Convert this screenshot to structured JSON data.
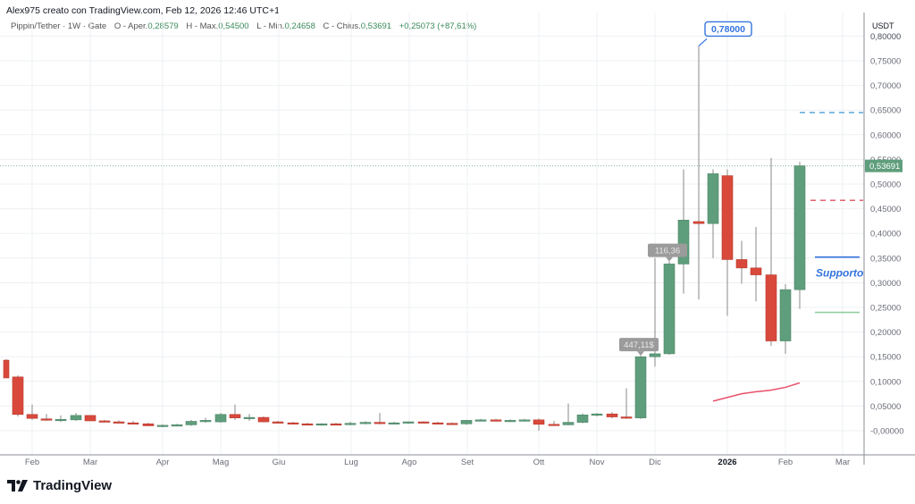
{
  "header": {
    "credit": "Alex975 creato con TradingView.com, Feb 12, 2026 12:46 UTC+1",
    "symbol": "Pippin/Tether · 1W · Gate",
    "open_label": "O - Aper.",
    "open": "0,28579",
    "high_label": "H - Max.",
    "high": "0,54500",
    "low_label": "L - Min.",
    "low": "0,24658",
    "close_label": "C - Chius.",
    "close": "0,53691",
    "change": "+0,25073 (+87,61%)"
  },
  "footer": {
    "brand": "TradingView"
  },
  "colors": {
    "up": "#5f9e7c",
    "down": "#d9493b",
    "wick": "#888888",
    "grid": "#eef0f3",
    "annotation_blue": "#3474dd",
    "resistance_dashed_blue": "#4a9fd8",
    "resistance_dashed_red": "#e05060",
    "support_green": "#8fce9f",
    "ma_line": "#e8506a"
  },
  "chart_data": {
    "type": "candlestick",
    "title": "Pippin/Tether · 1W · Gate",
    "ylabel": "USDT",
    "ylim": [
      -0.045,
      0.81
    ],
    "y_ticks": [
      "0,80000",
      "0,75000",
      "0,70000",
      "0,65000",
      "0,60000",
      "0,55000",
      "0,50000",
      "0,45000",
      "0,40000",
      "0,35000",
      "0,30000",
      "0,25000",
      "0,20000",
      "0,15000",
      "0,10000",
      "0,05000",
      "-0,00000"
    ],
    "y_tick_values": [
      0.8,
      0.75,
      0.7,
      0.65,
      0.6,
      0.55,
      0.5,
      0.45,
      0.4,
      0.35,
      0.3,
      0.25,
      0.2,
      0.15,
      0.1,
      0.05,
      0.0
    ],
    "x_ticks": [
      {
        "label": "Feb",
        "x": 36,
        "bold": false
      },
      {
        "label": "Mar",
        "x": 101,
        "bold": false
      },
      {
        "label": "Apr",
        "x": 182,
        "bold": false
      },
      {
        "label": "Mag",
        "x": 247,
        "bold": false
      },
      {
        "label": "Giu",
        "x": 312,
        "bold": false
      },
      {
        "label": "Lug",
        "x": 393,
        "bold": false
      },
      {
        "label": "Ago",
        "x": 458,
        "bold": false
      },
      {
        "label": "Set",
        "x": 523,
        "bold": false
      },
      {
        "label": "Ott",
        "x": 603,
        "bold": false
      },
      {
        "label": "Nov",
        "x": 668,
        "bold": false
      },
      {
        "label": "Dic",
        "x": 733,
        "bold": false
      },
      {
        "label": "2026",
        "x": 814,
        "bold": true
      },
      {
        "label": "Feb",
        "x": 879,
        "bold": false
      },
      {
        "label": "Mar",
        "x": 943,
        "bold": false
      }
    ],
    "candles": [
      {
        "x": 7,
        "o": 0.143,
        "h": 0.145,
        "l": 0.107,
        "c": 0.107,
        "partial": true
      },
      {
        "x": 20,
        "o": 0.109,
        "h": 0.112,
        "l": 0.029,
        "c": 0.033
      },
      {
        "x": 36,
        "o": 0.033,
        "h": 0.053,
        "l": 0.022,
        "c": 0.025
      },
      {
        "x": 52,
        "o": 0.024,
        "h": 0.034,
        "l": 0.02,
        "c": 0.022
      },
      {
        "x": 68,
        "o": 0.022,
        "h": 0.031,
        "l": 0.018,
        "c": 0.023
      },
      {
        "x": 85,
        "o": 0.022,
        "h": 0.036,
        "l": 0.02,
        "c": 0.031
      },
      {
        "x": 101,
        "o": 0.031,
        "h": 0.031,
        "l": 0.019,
        "c": 0.02
      },
      {
        "x": 117,
        "o": 0.02,
        "h": 0.022,
        "l": 0.017,
        "c": 0.018
      },
      {
        "x": 133,
        "o": 0.018,
        "h": 0.021,
        "l": 0.015,
        "c": 0.016
      },
      {
        "x": 149,
        "o": 0.016,
        "h": 0.02,
        "l": 0.013,
        "c": 0.014
      },
      {
        "x": 166,
        "o": 0.014,
        "h": 0.016,
        "l": 0.009,
        "c": 0.01
      },
      {
        "x": 182,
        "o": 0.009,
        "h": 0.013,
        "l": 0.007,
        "c": 0.011
      },
      {
        "x": 198,
        "o": 0.011,
        "h": 0.014,
        "l": 0.009,
        "c": 0.012
      },
      {
        "x": 214,
        "o": 0.012,
        "h": 0.022,
        "l": 0.01,
        "c": 0.019
      },
      {
        "x": 230,
        "o": 0.019,
        "h": 0.026,
        "l": 0.016,
        "c": 0.021
      },
      {
        "x": 247,
        "o": 0.018,
        "h": 0.036,
        "l": 0.016,
        "c": 0.033
      },
      {
        "x": 263,
        "o": 0.033,
        "h": 0.053,
        "l": 0.022,
        "c": 0.026
      },
      {
        "x": 279,
        "o": 0.025,
        "h": 0.034,
        "l": 0.02,
        "c": 0.027
      },
      {
        "x": 295,
        "o": 0.027,
        "h": 0.029,
        "l": 0.017,
        "c": 0.018
      },
      {
        "x": 311,
        "o": 0.018,
        "h": 0.02,
        "l": 0.015,
        "c": 0.016
      },
      {
        "x": 328,
        "o": 0.016,
        "h": 0.018,
        "l": 0.013,
        "c": 0.014
      },
      {
        "x": 344,
        "o": 0.014,
        "h": 0.016,
        "l": 0.011,
        "c": 0.012
      },
      {
        "x": 360,
        "o": 0.012,
        "h": 0.015,
        "l": 0.01,
        "c": 0.014
      },
      {
        "x": 376,
        "o": 0.014,
        "h": 0.016,
        "l": 0.012,
        "c": 0.013
      },
      {
        "x": 392,
        "o": 0.013,
        "h": 0.018,
        "l": 0.011,
        "c": 0.015
      },
      {
        "x": 409,
        "o": 0.015,
        "h": 0.019,
        "l": 0.013,
        "c": 0.017
      },
      {
        "x": 425,
        "o": 0.017,
        "h": 0.036,
        "l": 0.013,
        "c": 0.015
      },
      {
        "x": 441,
        "o": 0.015,
        "h": 0.018,
        "l": 0.013,
        "c": 0.016
      },
      {
        "x": 457,
        "o": 0.016,
        "h": 0.019,
        "l": 0.014,
        "c": 0.018
      },
      {
        "x": 474,
        "o": 0.018,
        "h": 0.019,
        "l": 0.015,
        "c": 0.016
      },
      {
        "x": 490,
        "o": 0.016,
        "h": 0.018,
        "l": 0.014,
        "c": 0.015
      },
      {
        "x": 506,
        "o": 0.015,
        "h": 0.017,
        "l": 0.013,
        "c": 0.014
      },
      {
        "x": 522,
        "o": 0.014,
        "h": 0.022,
        "l": 0.012,
        "c": 0.021
      },
      {
        "x": 538,
        "o": 0.021,
        "h": 0.024,
        "l": 0.019,
        "c": 0.022
      },
      {
        "x": 555,
        "o": 0.022,
        "h": 0.024,
        "l": 0.019,
        "c": 0.021
      },
      {
        "x": 571,
        "o": 0.02,
        "h": 0.023,
        "l": 0.018,
        "c": 0.021
      },
      {
        "x": 587,
        "o": 0.021,
        "h": 0.024,
        "l": 0.019,
        "c": 0.022
      },
      {
        "x": 603,
        "o": 0.022,
        "h": 0.025,
        "l": 0.0,
        "c": 0.013
      },
      {
        "x": 620,
        "o": 0.013,
        "h": 0.02,
        "l": 0.01,
        "c": 0.011
      },
      {
        "x": 636,
        "o": 0.012,
        "h": 0.055,
        "l": 0.011,
        "c": 0.017
      },
      {
        "x": 652,
        "o": 0.017,
        "h": 0.035,
        "l": 0.015,
        "c": 0.032
      },
      {
        "x": 668,
        "o": 0.032,
        "h": 0.036,
        "l": 0.029,
        "c": 0.034
      },
      {
        "x": 685,
        "o": 0.034,
        "h": 0.038,
        "l": 0.025,
        "c": 0.028
      },
      {
        "x": 701,
        "o": 0.028,
        "h": 0.086,
        "l": 0.024,
        "c": 0.026
      },
      {
        "x": 717,
        "o": 0.026,
        "h": 0.152,
        "l": 0.024,
        "c": 0.15
      },
      {
        "x": 733,
        "o": 0.15,
        "h": 0.35,
        "l": 0.13,
        "c": 0.156
      },
      {
        "x": 749,
        "o": 0.156,
        "h": 0.343,
        "l": 0.154,
        "c": 0.338
      },
      {
        "x": 765,
        "o": 0.338,
        "h": 0.53,
        "l": 0.278,
        "c": 0.427
      },
      {
        "x": 782,
        "o": 0.424,
        "h": 0.78,
        "l": 0.266,
        "c": 0.42
      },
      {
        "x": 798,
        "o": 0.42,
        "h": 0.53,
        "l": 0.35,
        "c": 0.521
      },
      {
        "x": 814,
        "o": 0.517,
        "h": 0.53,
        "l": 0.233,
        "c": 0.347
      },
      {
        "x": 830,
        "o": 0.347,
        "h": 0.385,
        "l": 0.298,
        "c": 0.33
      },
      {
        "x": 846,
        "o": 0.33,
        "h": 0.413,
        "l": 0.262,
        "c": 0.316
      },
      {
        "x": 863,
        "o": 0.316,
        "h": 0.553,
        "l": 0.172,
        "c": 0.182
      },
      {
        "x": 879,
        "o": 0.182,
        "h": 0.297,
        "l": 0.156,
        "c": 0.286
      },
      {
        "x": 895,
        "o": 0.286,
        "h": 0.545,
        "l": 0.247,
        "c": 0.537
      }
    ],
    "annotations": [
      {
        "type": "price_callout",
        "text": "0,78000",
        "x": 782,
        "price": 0.78
      },
      {
        "type": "volume_tag",
        "text": "116,36",
        "x": 749,
        "price": 0.343
      },
      {
        "type": "volume_tag",
        "text": "447,11$",
        "x": 717,
        "price": 0.152
      },
      {
        "type": "label",
        "text": "Supporto",
        "x": 913,
        "price": 0.32
      }
    ],
    "horizontal_levels": [
      {
        "price": 0.645,
        "style": "dashed",
        "color": "#4a9fd8",
        "x1": 895,
        "x2": 966
      },
      {
        "price": 0.467,
        "style": "dashed",
        "color": "#e05060",
        "x1": 907,
        "x2": 966
      },
      {
        "price": 0.352,
        "style": "solid",
        "color": "#3474dd",
        "x1": 912,
        "x2": 962
      },
      {
        "price": 0.24,
        "style": "solid",
        "color": "#8fce9f",
        "x1": 912,
        "x2": 962
      }
    ],
    "moving_average": [
      {
        "x": 798,
        "price": 0.06
      },
      {
        "x": 815,
        "price": 0.068
      },
      {
        "x": 830,
        "price": 0.075
      },
      {
        "x": 846,
        "price": 0.079
      },
      {
        "x": 862,
        "price": 0.082
      },
      {
        "x": 879,
        "price": 0.088
      },
      {
        "x": 895,
        "price": 0.097
      }
    ],
    "last_price": {
      "text": "0,53691",
      "price": 0.53691,
      "color": "#5f9e7c"
    },
    "scale_unit": "USDT"
  }
}
